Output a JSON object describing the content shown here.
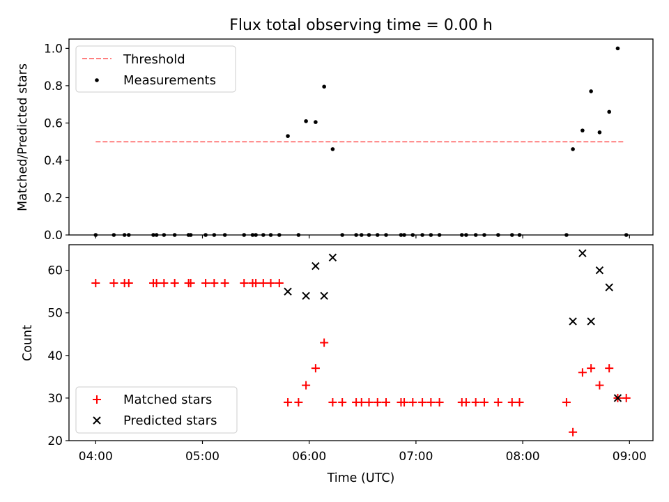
{
  "title": "Flux total observing time = 0.00 h",
  "xlabel": "Time (UTC)",
  "xticks": [
    "04:00",
    "05:00",
    "06:00",
    "07:00",
    "08:00",
    "09:00"
  ],
  "chart_data": [
    {
      "type": "scatter",
      "ylabel": "Matched/Predicted stars",
      "ylim": [
        0,
        1.05
      ],
      "yticks": [
        "0.0",
        "0.2",
        "0.4",
        "0.6",
        "0.8",
        "1.0"
      ],
      "xlim": [
        -0.25,
        5.22
      ],
      "x_units": "hours after 04:00 UTC",
      "legend": {
        "position": "upper-left",
        "entries": [
          "Threshold",
          "Measurements"
        ]
      },
      "threshold": {
        "name": "Threshold",
        "value": 0.5,
        "x": [
          0.0,
          4.95
        ],
        "color": "#ff7f7f",
        "style": "dashed"
      },
      "series": [
        {
          "name": "Measurements",
          "marker": "dot",
          "color": "#000000",
          "x": [
            0.0,
            0.17,
            0.27,
            0.31,
            0.54,
            0.57,
            0.64,
            0.74,
            0.87,
            0.89,
            1.03,
            1.11,
            1.21,
            1.39,
            1.47,
            1.5,
            1.57,
            1.64,
            1.72,
            1.8,
            1.9,
            1.97,
            2.06,
            2.14,
            2.22,
            2.31,
            2.44,
            2.49,
            2.56,
            2.64,
            2.72,
            2.86,
            2.89,
            2.97,
            3.06,
            3.14,
            3.22,
            3.43,
            3.47,
            3.56,
            3.64,
            3.77,
            3.9,
            3.97,
            4.41,
            4.47,
            4.56,
            4.64,
            4.72,
            4.81,
            4.89,
            4.97
          ],
          "y": [
            0,
            0,
            0,
            0,
            0,
            0,
            0,
            0,
            0,
            0,
            0,
            0,
            0,
            0,
            0,
            0,
            0,
            0,
            0,
            0.53,
            0,
            0.61,
            0.605,
            0.795,
            0.46,
            0,
            0,
            0,
            0,
            0,
            0,
            0,
            0,
            0,
            0,
            0,
            0,
            0,
            0,
            0,
            0,
            0,
            0,
            0,
            0,
            0.46,
            0.56,
            0.77,
            0.55,
            0.66,
            1.0,
            0
          ]
        }
      ]
    },
    {
      "type": "scatter",
      "ylabel": "Count",
      "ylim": [
        20,
        66
      ],
      "yticks": [
        "20",
        "30",
        "40",
        "50",
        "60"
      ],
      "xlim": [
        -0.25,
        5.22
      ],
      "x_units": "hours after 04:00 UTC",
      "legend": {
        "position": "lower-left",
        "entries": [
          "Matched stars",
          "Predicted stars"
        ]
      },
      "series": [
        {
          "name": "Matched stars",
          "marker": "plus",
          "color": "#ff0000",
          "x": [
            0.0,
            0.17,
            0.27,
            0.31,
            0.54,
            0.57,
            0.64,
            0.74,
            0.87,
            0.89,
            1.03,
            1.11,
            1.21,
            1.39,
            1.47,
            1.5,
            1.57,
            1.64,
            1.72,
            1.8,
            1.9,
            1.97,
            2.06,
            2.14,
            2.22,
            2.31,
            2.44,
            2.49,
            2.56,
            2.64,
            2.72,
            2.86,
            2.89,
            2.97,
            3.06,
            3.14,
            3.22,
            3.43,
            3.47,
            3.56,
            3.64,
            3.77,
            3.9,
            3.97,
            4.41,
            4.47,
            4.56,
            4.64,
            4.72,
            4.81,
            4.89,
            4.97
          ],
          "y": [
            57,
            57,
            57,
            57,
            57,
            57,
            57,
            57,
            57,
            57,
            57,
            57,
            57,
            57,
            57,
            57,
            57,
            57,
            57,
            29,
            29,
            33,
            37,
            43,
            29,
            29,
            29,
            29,
            29,
            29,
            29,
            29,
            29,
            29,
            29,
            29,
            29,
            29,
            29,
            29,
            29,
            29,
            29,
            29,
            29,
            22,
            36,
            37,
            33,
            37,
            30,
            30
          ]
        },
        {
          "name": "Predicted stars",
          "marker": "x",
          "color": "#000000",
          "x": [
            1.8,
            1.97,
            2.06,
            2.14,
            2.22,
            4.47,
            4.56,
            4.64,
            4.72,
            4.81,
            4.89
          ],
          "y": [
            55,
            54,
            61,
            54,
            63,
            48,
            64,
            48,
            60,
            56,
            30
          ]
        }
      ]
    }
  ]
}
